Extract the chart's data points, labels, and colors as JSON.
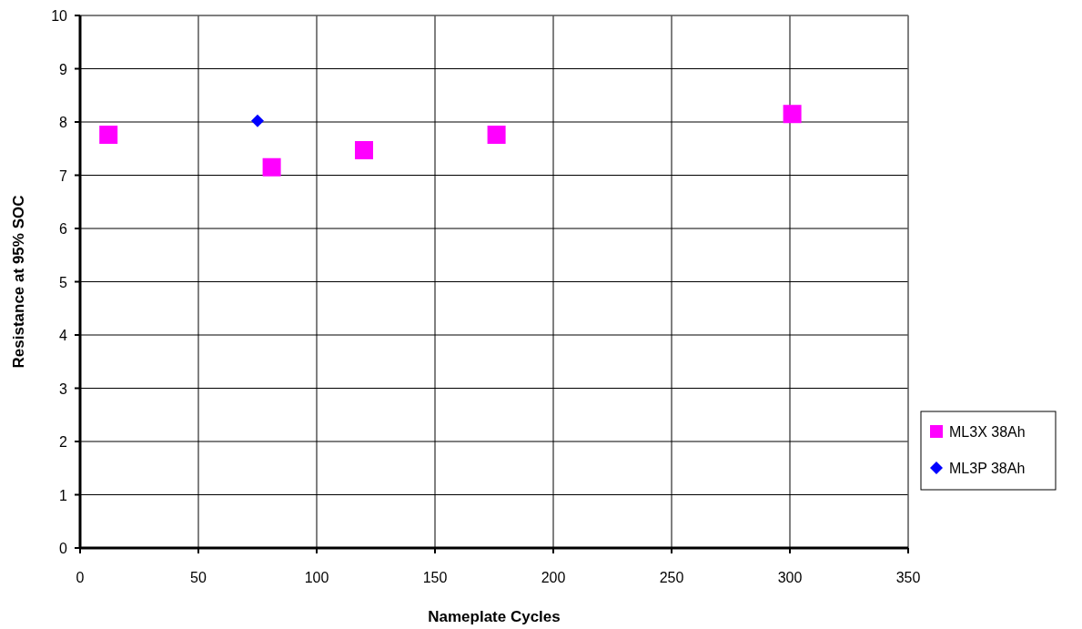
{
  "chart_data": {
    "type": "scatter",
    "xlabel": "Nameplate Cycles",
    "ylabel": "Resistance at 95% SOC",
    "xlim": [
      0,
      350
    ],
    "xticks": [
      0,
      50,
      100,
      150,
      200,
      250,
      300,
      350
    ],
    "ylim": [
      0,
      10
    ],
    "yticks": [
      0,
      1,
      2,
      3,
      4,
      5,
      6,
      7,
      8,
      9,
      10
    ],
    "grid": true,
    "legend": "right",
    "series": [
      {
        "name": "ML3X 38Ah",
        "color": "#ff00ff",
        "marker": "square",
        "x": [
          12,
          81,
          120,
          176,
          301
        ],
        "values": [
          7.76,
          7.15,
          7.47,
          7.76,
          8.15
        ]
      },
      {
        "name": "ML3P 38Ah",
        "color": "#0000ff",
        "marker": "diamond",
        "x": [
          75
        ],
        "values": [
          8.02
        ]
      }
    ]
  }
}
